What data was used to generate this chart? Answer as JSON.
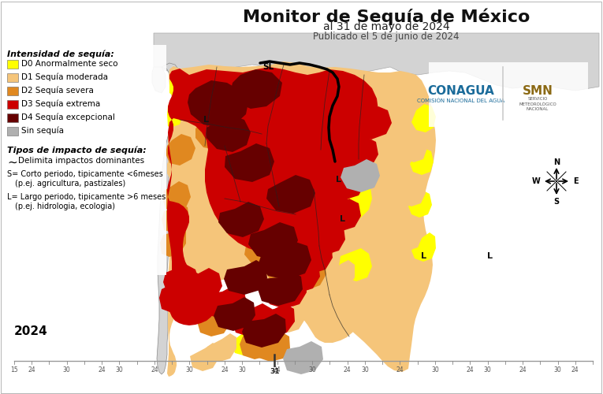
{
  "title": "Monitor de Sequía de México",
  "subtitle1": "al 31 de mayo de 2024",
  "subtitle2": "Publicado el 5 de junio de 2024",
  "bg_color": "#ffffff",
  "legend_title1": "Intensidad de sequía:",
  "legend_items": [
    {
      "label": "D0 Anormalmente seco",
      "color": "#FFFF00"
    },
    {
      "label": "D1 Sequía moderada",
      "color": "#F5C57A"
    },
    {
      "label": "D2 Sequía severa",
      "color": "#E08820"
    },
    {
      "label": "D3 Sequía extrema",
      "color": "#CC0000"
    },
    {
      "label": "D4 Sequía excepcional",
      "color": "#660000"
    },
    {
      "label": "Sin sequía",
      "color": "#B0B0B0"
    }
  ],
  "legend_title2": "Tipos de impacto de sequía:",
  "impact_lines": [
    "~   Delimita impactos dominantes",
    "S= Corto periodo, tipicamente <6meses",
    "   (p.ej. agricultura, pastizales)",
    "L= Largo periodo, tipicamente >6 meses",
    " (p.ej. hidrologia, ecologia)"
  ],
  "year_label": "2024",
  "figsize": [
    7.65,
    5.0
  ],
  "dpi": 100,
  "map_bg": "#ffffff",
  "water_color": "#e8f4f8",
  "outside_color": "#d3d3d3",
  "D0": "#FFFF00",
  "D1": "#F5C57A",
  "D2": "#E08820",
  "D3": "#CC0000",
  "D4": "#660000",
  "gray": "#B0B0B0"
}
